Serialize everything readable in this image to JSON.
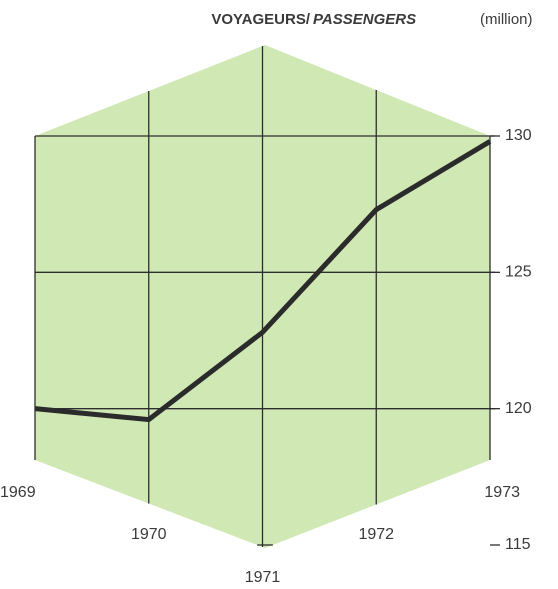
{
  "chart_data": {
    "type": "line",
    "title": "VOYAGEURS/",
    "title_italic": "PASSENGERS",
    "unit": "(million)",
    "x": [
      1969,
      1970,
      1971,
      1972,
      1973
    ],
    "series": [
      {
        "name": "PASSENGERS",
        "color": "#2b2b2b",
        "values": [
          120.0,
          119.6,
          122.8,
          127.3,
          129.8
        ]
      }
    ],
    "xlim": [
      1969,
      1973
    ],
    "xticks": [
      1969,
      1970,
      1971,
      1972,
      1973
    ],
    "ylim": [
      115,
      130
    ],
    "yticks": [
      115,
      120,
      125,
      130
    ],
    "grid": true
  }
}
